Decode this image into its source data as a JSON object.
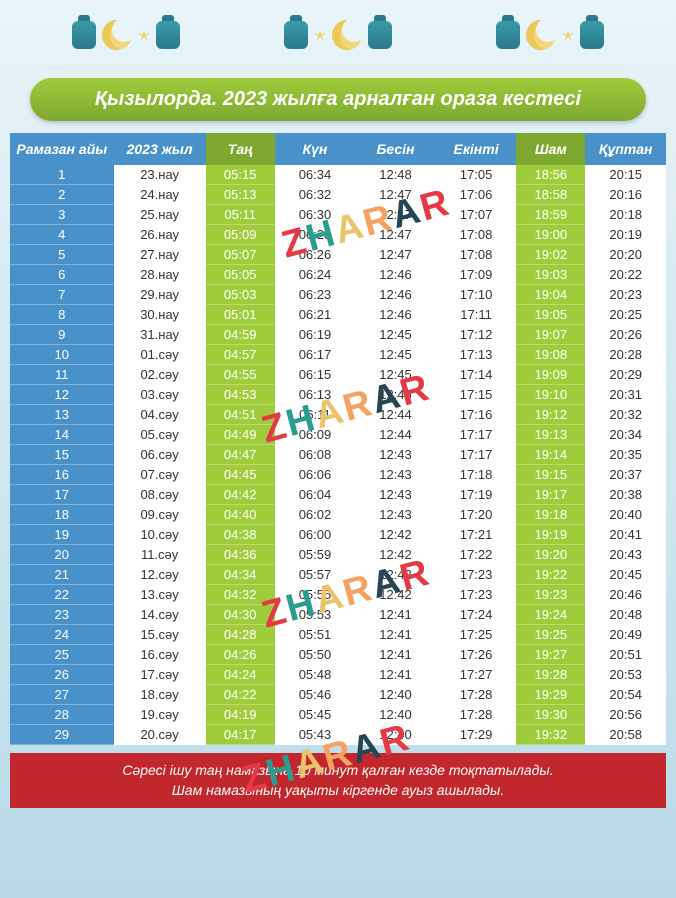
{
  "title": "Қызылорда. 2023 жылға арналған ораза кестесі",
  "watermark_text": "ZHARAR",
  "headers": {
    "day": "Рамазан айы",
    "date": "2023 жыл",
    "tan": "Таң",
    "kun": "Күн",
    "besin": "Бесін",
    "ekinti": "Екінті",
    "sham": "Шам",
    "quptan": "Құптан"
  },
  "footer": {
    "line1": "Сәресі ішу таң намазына 10 минут қалған кезде тоқтатылады.",
    "line2": "Шам намазының уақыты кіргенде ауыз ашылады."
  },
  "rows": [
    {
      "day": "1",
      "date": "23.нау",
      "tan": "05:15",
      "kun": "06:34",
      "besin": "12:48",
      "ekinti": "17:05",
      "sham": "18:56",
      "quptan": "20:15"
    },
    {
      "day": "2",
      "date": "24.нау",
      "tan": "05:13",
      "kun": "06:32",
      "besin": "12:47",
      "ekinti": "17:06",
      "sham": "18:58",
      "quptan": "20:16"
    },
    {
      "day": "3",
      "date": "25.нау",
      "tan": "05:11",
      "kun": "06:30",
      "besin": "12:47",
      "ekinti": "17:07",
      "sham": "18:59",
      "quptan": "20:18"
    },
    {
      "day": "4",
      "date": "26.нау",
      "tan": "05:09",
      "kun": "06:28",
      "besin": "12:47",
      "ekinti": "17:08",
      "sham": "19:00",
      "quptan": "20:19"
    },
    {
      "day": "5",
      "date": "27.нау",
      "tan": "05:07",
      "kun": "06:26",
      "besin": "12:47",
      "ekinti": "17:08",
      "sham": "19:02",
      "quptan": "20:20"
    },
    {
      "day": "6",
      "date": "28.нау",
      "tan": "05:05",
      "kun": "06:24",
      "besin": "12:46",
      "ekinti": "17:09",
      "sham": "19:03",
      "quptan": "20:22"
    },
    {
      "day": "7",
      "date": "29.нау",
      "tan": "05:03",
      "kun": "06:23",
      "besin": "12:46",
      "ekinti": "17:10",
      "sham": "19:04",
      "quptan": "20:23"
    },
    {
      "day": "8",
      "date": "30.нау",
      "tan": "05:01",
      "kun": "06:21",
      "besin": "12:46",
      "ekinti": "17:11",
      "sham": "19:05",
      "quptan": "20:25"
    },
    {
      "day": "9",
      "date": "31.нау",
      "tan": "04:59",
      "kun": "06:19",
      "besin": "12:45",
      "ekinti": "17:12",
      "sham": "19:07",
      "quptan": "20:26"
    },
    {
      "day": "10",
      "date": "01.сәу",
      "tan": "04:57",
      "kun": "06:17",
      "besin": "12:45",
      "ekinti": "17:13",
      "sham": "19:08",
      "quptan": "20:28"
    },
    {
      "day": "11",
      "date": "02.сәу",
      "tan": "04:55",
      "kun": "06:15",
      "besin": "12:45",
      "ekinti": "17:14",
      "sham": "19:09",
      "quptan": "20:29"
    },
    {
      "day": "12",
      "date": "03.сәу",
      "tan": "04:53",
      "kun": "06:13",
      "besin": "12:45",
      "ekinti": "17:15",
      "sham": "19:10",
      "quptan": "20:31"
    },
    {
      "day": "13",
      "date": "04.сәу",
      "tan": "04:51",
      "kun": "06:11",
      "besin": "12:44",
      "ekinti": "17:16",
      "sham": "19:12",
      "quptan": "20:32"
    },
    {
      "day": "14",
      "date": "05.сәу",
      "tan": "04:49",
      "kun": "06:09",
      "besin": "12:44",
      "ekinti": "17:17",
      "sham": "19:13",
      "quptan": "20:34"
    },
    {
      "day": "15",
      "date": "06.сәу",
      "tan": "04:47",
      "kun": "06:08",
      "besin": "12:43",
      "ekinti": "17:17",
      "sham": "19:14",
      "quptan": "20:35"
    },
    {
      "day": "16",
      "date": "07.сәу",
      "tan": "04:45",
      "kun": "06:06",
      "besin": "12:43",
      "ekinti": "17:18",
      "sham": "19:15",
      "quptan": "20:37"
    },
    {
      "day": "17",
      "date": "08.сәу",
      "tan": "04:42",
      "kun": "06:04",
      "besin": "12:43",
      "ekinti": "17:19",
      "sham": "19:17",
      "quptan": "20:38"
    },
    {
      "day": "18",
      "date": "09.сәу",
      "tan": "04:40",
      "kun": "06:02",
      "besin": "12:43",
      "ekinti": "17:20",
      "sham": "19:18",
      "quptan": "20:40"
    },
    {
      "day": "19",
      "date": "10.сәу",
      "tan": "04:38",
      "kun": "06:00",
      "besin": "12:42",
      "ekinti": "17:21",
      "sham": "19:19",
      "quptan": "20:41"
    },
    {
      "day": "20",
      "date": "11.сәу",
      "tan": "04:36",
      "kun": "05:59",
      "besin": "12:42",
      "ekinti": "17:22",
      "sham": "19:20",
      "quptan": "20:43"
    },
    {
      "day": "21",
      "date": "12.сәу",
      "tan": "04:34",
      "kun": "05:57",
      "besin": "12:42",
      "ekinti": "17:23",
      "sham": "19:22",
      "quptan": "20:45"
    },
    {
      "day": "22",
      "date": "13.сәу",
      "tan": "04:32",
      "kun": "05:55",
      "besin": "12:42",
      "ekinti": "17:23",
      "sham": "19:23",
      "quptan": "20:46"
    },
    {
      "day": "23",
      "date": "14.сәу",
      "tan": "04:30",
      "kun": "05:53",
      "besin": "12:41",
      "ekinti": "17:24",
      "sham": "19:24",
      "quptan": "20:48"
    },
    {
      "day": "24",
      "date": "15.сәу",
      "tan": "04:28",
      "kun": "05:51",
      "besin": "12:41",
      "ekinti": "17:25",
      "sham": "19:25",
      "quptan": "20:49"
    },
    {
      "day": "25",
      "date": "16.сәу",
      "tan": "04:26",
      "kun": "05:50",
      "besin": "12:41",
      "ekinti": "17:26",
      "sham": "19:27",
      "quptan": "20:51"
    },
    {
      "day": "26",
      "date": "17.сәу",
      "tan": "04:24",
      "kun": "05:48",
      "besin": "12:41",
      "ekinti": "17:27",
      "sham": "19:28",
      "quptan": "20:53"
    },
    {
      "day": "27",
      "date": "18.сәу",
      "tan": "04:22",
      "kun": "05:46",
      "besin": "12:40",
      "ekinti": "17:28",
      "sham": "19:29",
      "quptan": "20:54"
    },
    {
      "day": "28",
      "date": "19.сәу",
      "tan": "04:19",
      "kun": "05:45",
      "besin": "12:40",
      "ekinti": "17:28",
      "sham": "19:30",
      "quptan": "20:56"
    },
    {
      "day": "29",
      "date": "20.сәу",
      "tan": "04:17",
      "kun": "05:43",
      "besin": "12:40",
      "ekinti": "17:29",
      "sham": "19:32",
      "quptan": "20:58"
    }
  ],
  "colors": {
    "blue": "#4992c9",
    "green_light": "#9FCC3B",
    "green_dark": "#7FA830",
    "red": "#c1272d",
    "bg_top": "#e8f4f8",
    "bg_bottom": "#b8dae8"
  }
}
